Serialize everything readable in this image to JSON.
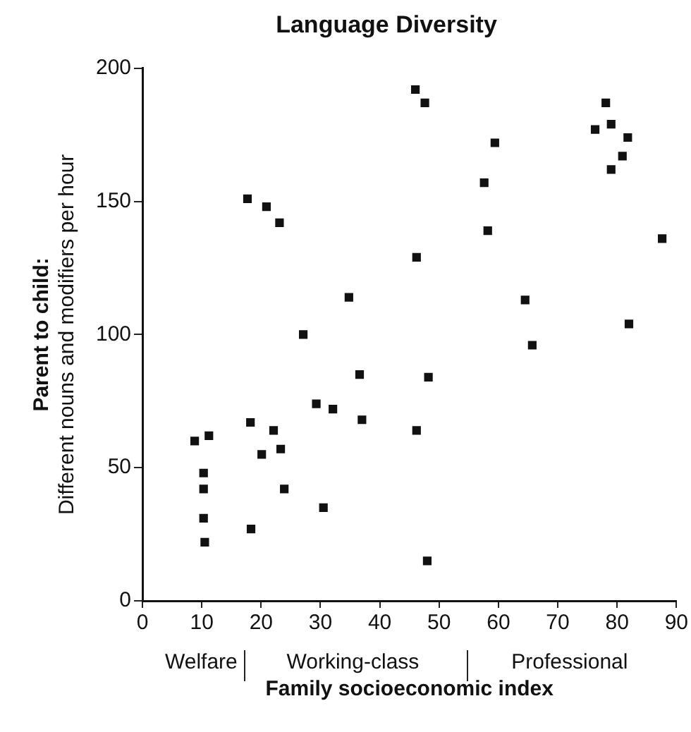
{
  "chart_data": {
    "type": "scatter",
    "title": "Language Diversity",
    "xlabel": "Family socioeconomic index",
    "ylabel": "Parent to child:\nDifferent nouns and modifiers per hour",
    "annotations": [
      "Welfare",
      "Working-class",
      "Professional"
    ],
    "x": [
      8.8,
      11.2,
      10.3,
      10.3,
      10.3,
      10.5,
      17.7,
      20.9,
      23.1,
      18.2,
      22.1,
      20.1,
      23.3,
      23.9,
      18.3,
      34.8,
      27.1,
      36.6,
      29.3,
      32.1,
      37.0,
      30.5,
      46.0,
      47.6,
      46.2,
      48.2,
      46.2,
      48.0,
      59.4,
      57.6,
      58.2,
      64.5,
      65.7,
      78.1,
      76.3,
      79.0,
      81.8,
      80.9,
      79.0,
      87.6,
      82.0
    ],
    "values": [
      60,
      62,
      48,
      42,
      31,
      22,
      151,
      148,
      142,
      67,
      64,
      55,
      57,
      42,
      27,
      114,
      100,
      85,
      74,
      72,
      68,
      35,
      192,
      187,
      129,
      84,
      64,
      15,
      172,
      157,
      139,
      113,
      96,
      187,
      177,
      179,
      174,
      167,
      162,
      136,
      104
    ],
    "color": "#111111",
    "marker": "square",
    "xlim": [
      0,
      90
    ],
    "xticks": [
      0,
      10,
      20,
      30,
      40,
      50,
      60,
      70,
      80,
      90
    ],
    "ylim": [
      0,
      200
    ],
    "yticks": [
      0,
      50,
      100,
      150,
      200
    ],
    "grid": false,
    "legend": false
  }
}
